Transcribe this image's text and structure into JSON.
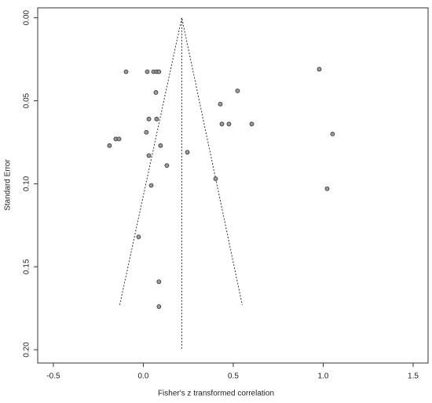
{
  "chart_data": {
    "type": "scatter",
    "x_label": "Fisher's z transformed correlation",
    "y_label": "Standard Error",
    "xlim": [
      -0.587,
      1.583
    ],
    "ylim": [
      0.208,
      -0.006
    ],
    "xticks": [
      -0.5,
      {
        "value": 0,
        "label": "0.0"
      },
      0.5,
      {
        "value": 1,
        "label": "1.0"
      },
      1.5
    ],
    "yticks": [
      {
        "value": 0,
        "label": "0.00"
      },
      {
        "value": 0.05,
        "label": "0.05"
      },
      {
        "value": 0.1,
        "label": "0.10"
      },
      {
        "value": 0.15,
        "label": "0.15"
      },
      {
        "value": 0.2,
        "label": "0.20"
      }
    ],
    "color": "#9a9a9a",
    "x": [
      -0.096,
      0.022,
      0.057,
      0.074,
      0.087,
      0.978,
      0.07,
      0.524,
      0.428,
      0.031,
      0.074,
      0.437,
      0.476,
      0.603,
      0.017,
      1.052,
      -0.153,
      -0.135,
      -0.188,
      0.096,
      0.245,
      0.031,
      0.131,
      0.402,
      0.044,
      1.022,
      -0.026,
      0.087,
      0.087
    ],
    "values": [
      0.0325,
      0.0325,
      0.0325,
      0.0325,
      0.0325,
      0.031,
      0.045,
      0.044,
      0.052,
      0.061,
      0.061,
      0.064,
      0.064,
      0.064,
      0.069,
      0.07,
      0.073,
      0.073,
      0.077,
      0.077,
      0.081,
      0.083,
      0.089,
      0.097,
      0.101,
      0.103,
      0.132,
      0.159,
      0.174
    ],
    "lines": [
      {
        "x": [
          -0.131,
          0.214,
          0.55
        ],
        "values": [
          0.173,
          0,
          0.173
        ]
      },
      {
        "x": [
          0.214,
          0.214
        ],
        "values": [
          0,
          0.2
        ]
      }
    ]
  }
}
